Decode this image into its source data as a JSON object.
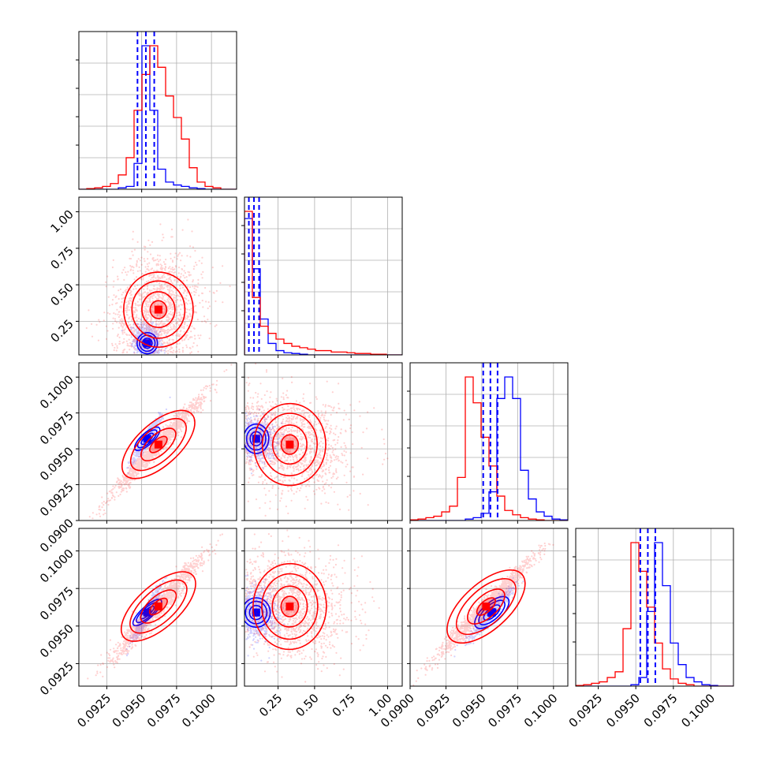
{
  "chart_data": {
    "type": "scatter",
    "layout": "corner",
    "parameters": 4,
    "title": "",
    "grid": true,
    "legend": "none",
    "colors": {
      "a": "#0000ff",
      "b": "#ff0000"
    },
    "ranges": [
      [
        0.0905,
        0.1018
      ],
      [
        0.02,
        1.1
      ],
      [
        0.09,
        0.101
      ],
      [
        0.091,
        0.1015
      ]
    ],
    "ticks": [
      {
        "values": [
          0.0925,
          0.095,
          0.0975,
          0.1
        ],
        "labels": [
          "0.0925",
          "0.0950",
          "0.0975",
          "0.1000"
        ]
      },
      {
        "values": [
          0.25,
          0.5,
          0.75,
          1.0
        ],
        "labels": [
          "0.25",
          "0.50",
          "0.75",
          "1.00"
        ]
      },
      {
        "values": [
          0.09,
          0.0925,
          0.095,
          0.0975,
          0.1
        ],
        "labels": [
          "0.0900",
          "0.0925",
          "0.0950",
          "0.0975",
          "0.1000"
        ]
      },
      {
        "values": [
          0.0925,
          0.095,
          0.0975,
          0.1
        ],
        "labels": [
          "0.0925",
          "0.0950",
          "0.0975",
          "0.1000"
        ]
      }
    ],
    "quantiles": {
      "a": [
        [
          0.0947,
          0.0953,
          0.0959
        ],
        [
          0.05,
          0.085,
          0.12
        ],
        [
          0.0951,
          0.0956,
          0.0961
        ],
        [
          0.0953,
          0.0958,
          0.0963
        ]
      ]
    },
    "series": [
      {
        "key": "a",
        "color": "#0000ff",
        "mean": [
          0.0954,
          0.1,
          0.0957,
          0.0959
        ],
        "sd": [
          0.00045,
          0.06,
          0.0007,
          0.0008
        ],
        "corr": [
          [
            1,
            -0.2,
            0.95,
            0.94
          ],
          [
            -0.2,
            1,
            -0.1,
            -0.1
          ],
          [
            0.95,
            -0.1,
            1,
            0.96
          ],
          [
            0.94,
            -0.1,
            0.96,
            1
          ]
        ],
        "hist": [
          [
            0,
            0,
            0,
            0,
            0,
            0.01,
            0.02,
            0.18,
            1.0,
            0.55,
            0.14,
            0.05,
            0.03,
            0.02,
            0.01,
            0.005,
            0,
            0,
            0,
            0
          ],
          [
            0.95,
            0.6,
            0.25,
            0.08,
            0.03,
            0.015,
            0.01,
            0.005,
            0,
            0,
            0,
            0,
            0,
            0,
            0,
            0,
            0,
            0,
            0,
            0
          ],
          [
            0,
            0,
            0,
            0,
            0,
            0,
            0,
            0.01,
            0.02,
            0.05,
            0.2,
            0.85,
            1.0,
            0.85,
            0.35,
            0.15,
            0.06,
            0.03,
            0.01,
            0.005
          ],
          [
            0,
            0,
            0,
            0,
            0,
            0,
            0,
            0.01,
            0.06,
            0.52,
            1.0,
            0.7,
            0.3,
            0.15,
            0.06,
            0.03,
            0.01,
            0.005,
            0,
            0
          ]
        ]
      },
      {
        "key": "b",
        "color": "#ff0000",
        "mean": [
          0.0962,
          0.33,
          0.0953,
          0.0963
        ],
        "sd": [
          0.0016,
          0.2,
          0.0017,
          0.0017
        ],
        "corr": [
          [
            1,
            0.1,
            0.98,
            0.97
          ],
          [
            0.1,
            1,
            -0.15,
            -0.15
          ],
          [
            0.98,
            -0.15,
            1,
            0.98
          ],
          [
            0.97,
            -0.15,
            0.98,
            1
          ]
        ],
        "hist": [
          [
            0,
            0.005,
            0.01,
            0.02,
            0.04,
            0.1,
            0.22,
            0.55,
            0.8,
            1.0,
            0.85,
            0.65,
            0.5,
            0.35,
            0.15,
            0.05,
            0.02,
            0.01,
            0,
            0
          ],
          [
            1.0,
            0.4,
            0.2,
            0.15,
            0.11,
            0.08,
            0.06,
            0.05,
            0.04,
            0.03,
            0.03,
            0.02,
            0.02,
            0.015,
            0.01,
            0.01,
            0.005,
            0.005,
            0,
            0
          ],
          [
            0.005,
            0.01,
            0.02,
            0.03,
            0.06,
            0.1,
            0.3,
            1.0,
            0.82,
            0.58,
            0.38,
            0.17,
            0.07,
            0.04,
            0.02,
            0.01,
            0.005,
            0,
            0,
            0
          ],
          [
            0.005,
            0.01,
            0.02,
            0.03,
            0.06,
            0.1,
            0.4,
            1.0,
            0.8,
            0.55,
            0.3,
            0.12,
            0.05,
            0.02,
            0.01,
            0,
            0,
            0,
            0,
            0
          ]
        ]
      }
    ]
  }
}
